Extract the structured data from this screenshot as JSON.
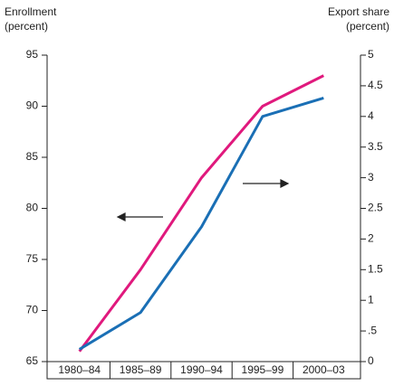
{
  "chart_data": {
    "type": "line",
    "ylabel": [
      "Enrollment",
      "(percent)"
    ],
    "y2label": [
      "Export share",
      "(percent)"
    ],
    "categories": [
      "1980–84",
      "1985–89",
      "1990–94",
      "1995–99",
      "2000–03"
    ],
    "series": [
      {
        "name": null,
        "color": "#e0197d",
        "values": [
          66,
          74,
          83,
          90,
          93
        ]
      },
      {
        "name": null,
        "color": "#1a6fb5",
        "axis": "y2",
        "values": [
          0.2,
          0.8,
          2.2,
          4.0,
          4.3
        ]
      }
    ],
    "ylim": [
      65,
      95
    ],
    "yticks": [
      65,
      70,
      75,
      80,
      85,
      90,
      95
    ],
    "y2lim": [
      0,
      5
    ],
    "y2ticks": [
      0,
      {
        "value": 0.5,
        "label": ".5"
      },
      1,
      1.5,
      2,
      2.5,
      3,
      3.5,
      4,
      4.5,
      5
    ]
  }
}
